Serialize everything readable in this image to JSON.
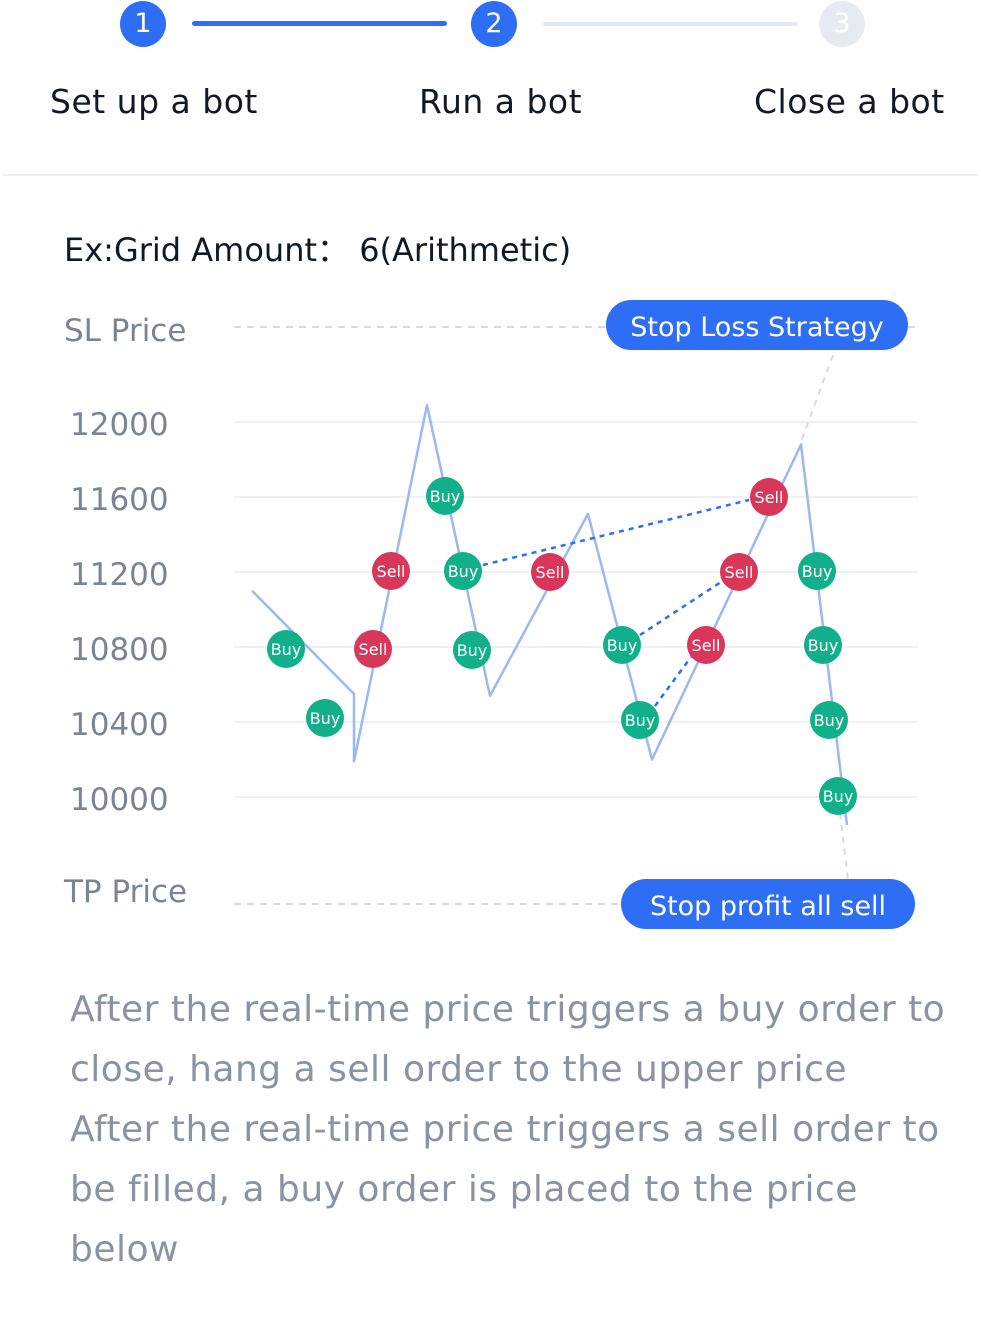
{
  "steps": [
    {
      "number": "1",
      "label": "Set up a bot",
      "state": "active"
    },
    {
      "number": "2",
      "label": "Run a bot",
      "state": "active"
    },
    {
      "number": "3",
      "label": "Close a bot",
      "state": "inactive"
    }
  ],
  "heading": "Ex:Grid Amount： 6(Arithmetic)",
  "chart": {
    "sl_label": "SL Price",
    "tp_label": "TP Price",
    "stop_loss_button": "Stop Loss Strategy",
    "stop_profit_button": "Stop profit all sell",
    "price_levels": [
      "12000",
      "11600",
      "11200",
      "10800",
      "10400",
      "10000"
    ],
    "colors": {
      "accent": "#2d6ef5",
      "buy": "#12b08a",
      "sell": "#d8375a",
      "price_line": "#9bb9f0",
      "axis_text": "#7b8494"
    }
  },
  "chart_data": {
    "type": "line",
    "price_path": [
      [
        0,
        11100
      ],
      [
        1,
        10550
      ],
      [
        2,
        10190
      ],
      [
        3,
        12090
      ],
      [
        4,
        10540
      ],
      [
        5,
        11510
      ],
      [
        6,
        10200
      ],
      [
        7,
        11880
      ],
      [
        8,
        9850
      ]
    ],
    "markers": [
      {
        "label": "Buy",
        "x": 0.35,
        "y": 10800
      },
      {
        "label": "Buy",
        "x": 0.75,
        "y": 10420
      },
      {
        "label": "Sell",
        "x": 1.7,
        "y": 10800
      },
      {
        "label": "Sell",
        "x": 2.3,
        "y": 11200
      },
      {
        "label": "Buy",
        "x": 2.85,
        "y": 11600
      },
      {
        "label": "Buy",
        "x": 3.3,
        "y": 11200
      },
      {
        "label": "Buy",
        "x": 3.5,
        "y": 10800
      },
      {
        "label": "Sell",
        "x": 4.7,
        "y": 11200
      },
      {
        "label": "Buy",
        "x": 5.75,
        "y": 10820
      },
      {
        "label": "Buy",
        "x": 5.9,
        "y": 10400
      },
      {
        "label": "Sell",
        "x": 6.55,
        "y": 10820
      },
      {
        "label": "Sell",
        "x": 6.85,
        "y": 11200
      },
      {
        "label": "Sell",
        "x": 7.1,
        "y": 11600
      },
      {
        "label": "Buy",
        "x": 7.85,
        "y": 11200
      },
      {
        "label": "Buy",
        "x": 7.95,
        "y": 10800
      },
      {
        "label": "Buy",
        "x": 8.0,
        "y": 10400
      },
      {
        "label": "Buy",
        "x": 8.1,
        "y": 10000
      }
    ],
    "links": [
      [
        5,
        12
      ],
      [
        8,
        11
      ],
      [
        9,
        10
      ]
    ]
  },
  "description": [
    "After the real-time price triggers a buy order to close, hang a sell order to the upper price",
    "After the real-time price triggers a sell order to be filled, a buy order is placed to the price below"
  ]
}
